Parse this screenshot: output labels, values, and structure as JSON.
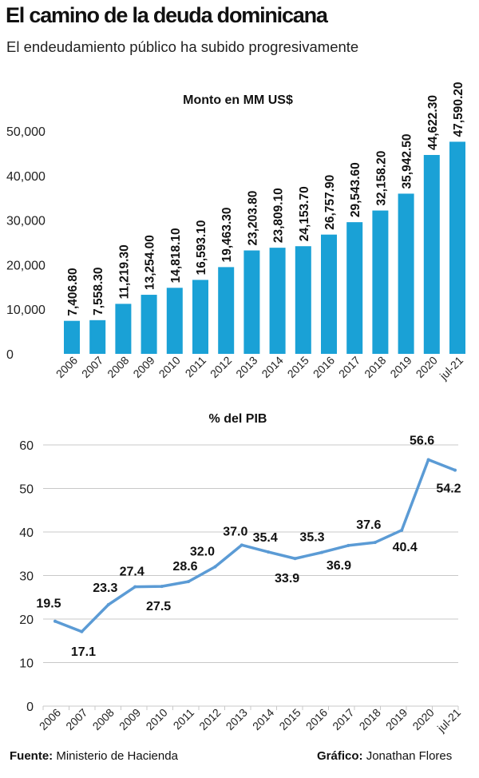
{
  "header": {
    "title": "El camino de la deuda dominicana",
    "subtitle": "El endeudamiento público ha  subido progresivamente"
  },
  "chart_data": [
    {
      "type": "bar",
      "title": "Monto en MM US$",
      "categories": [
        "2006",
        "2007",
        "2008",
        "2009",
        "2010",
        "2011",
        "2012",
        "2013",
        "2014",
        "2015",
        "2016",
        "2017",
        "2018",
        "2019",
        "2020",
        "jul-21"
      ],
      "values": [
        7406.8,
        7558.3,
        11219.3,
        13254.0,
        14818.1,
        16593.1,
        19463.3,
        23203.8,
        23809.1,
        24153.7,
        26757.9,
        29543.6,
        32158.2,
        35942.5,
        44622.3,
        47590.2
      ],
      "value_labels": [
        "7,406.80",
        "7,558.30",
        "11,219.30",
        "13,254.00",
        "14,818.10",
        "16,593.10",
        "19,463.30",
        "23,203.80",
        "23,809.10",
        "24,153.70",
        "26,757.90",
        "29,543.60",
        "32,158.20",
        "35,942.50",
        "44,622.30",
        "47,590.20"
      ],
      "yticks": [
        0,
        10000,
        20000,
        30000,
        40000,
        50000
      ],
      "ytick_labels": [
        "0",
        "10,000",
        "20,000",
        "30,000",
        "40,000",
        "50,000"
      ],
      "ylim": [
        0,
        50000
      ],
      "color": "#1aa1d6",
      "grid": false
    },
    {
      "type": "line",
      "title": "% del PIB",
      "categories": [
        "2006",
        "2007",
        "2008",
        "2009",
        "2010",
        "2011",
        "2012",
        "2013",
        "2014",
        "2015",
        "2016",
        "2017",
        "2018",
        "2019",
        "2020",
        "jul-21"
      ],
      "values": [
        19.5,
        17.1,
        23.3,
        27.4,
        27.5,
        28.6,
        32.0,
        37.0,
        35.4,
        33.9,
        35.3,
        36.9,
        37.6,
        40.4,
        56.6,
        54.2
      ],
      "value_labels": [
        "19.5",
        "17.1",
        "23.3",
        "27.4",
        "27.5",
        "28.6",
        "32.0",
        "37.0",
        "35.4",
        "33.9",
        "35.3",
        "36.9",
        "37.6",
        "40.4",
        "56.6",
        "54.2"
      ],
      "yticks": [
        0,
        10,
        20,
        30,
        40,
        50,
        60
      ],
      "ytick_labels": [
        "0",
        "10",
        "20",
        "30",
        "40",
        "50",
        "60"
      ],
      "ylim": [
        0,
        60
      ],
      "color": "#5b9bd5",
      "grid": true
    }
  ],
  "footer": {
    "source_label": "Fuente:",
    "source_text": "Ministerio de Hacienda",
    "credit_label": "Gráfico:",
    "credit_text": "Jonathan Flores"
  }
}
